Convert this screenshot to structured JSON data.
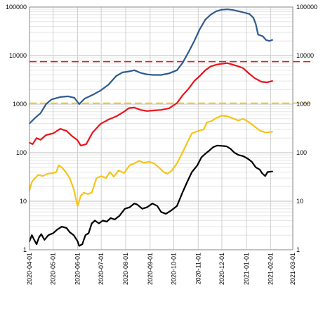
{
  "chart_data": {
    "type": "line",
    "yscale": "log",
    "ylim": [
      1,
      100000
    ],
    "xlim": [
      "2020-04-01",
      "2021-03-01"
    ],
    "grid": true,
    "legend": "none",
    "y_ticks": [
      {
        "value": 1,
        "label": "1"
      },
      {
        "value": 10,
        "label": "10"
      },
      {
        "value": 100,
        "label": "100"
      },
      {
        "value": 1000,
        "label": "1000"
      },
      {
        "value": 10000,
        "label": "10000"
      },
      {
        "value": 100000,
        "label": "100000"
      }
    ],
    "x_ticks": [
      "2020-04-01",
      "2020-05-01",
      "2020-06-01",
      "2020-07-01",
      "2020-08-01",
      "2020-09-01",
      "2020-10-01",
      "2020-11-01",
      "2020-12-01",
      "2021-01-01",
      "2021-02-01",
      "2021-03-01"
    ],
    "reference_lines": [
      {
        "value": 7500,
        "color": "#e8141b",
        "style": "dashed"
      },
      {
        "value": 1050,
        "color": "#f5c518",
        "style": "dashed"
      }
    ],
    "series": [
      {
        "color": "#2e5b8f",
        "points": [
          [
            "2020-04-01",
            400
          ],
          [
            "2020-04-08",
            520
          ],
          [
            "2020-04-15",
            650
          ],
          [
            "2020-04-22",
            1000
          ],
          [
            "2020-04-29",
            1250
          ],
          [
            "2020-05-10",
            1400
          ],
          [
            "2020-05-20",
            1450
          ],
          [
            "2020-05-28",
            1350
          ],
          [
            "2020-06-03",
            1000
          ],
          [
            "2020-06-10",
            1300
          ],
          [
            "2020-06-20",
            1550
          ],
          [
            "2020-06-30",
            1900
          ],
          [
            "2020-07-10",
            2500
          ],
          [
            "2020-07-20",
            3800
          ],
          [
            "2020-07-28",
            4500
          ],
          [
            "2020-08-05",
            4700
          ],
          [
            "2020-08-12",
            5000
          ],
          [
            "2020-08-20",
            4400
          ],
          [
            "2020-08-28",
            4100
          ],
          [
            "2020-09-05",
            4000
          ],
          [
            "2020-09-15",
            4000
          ],
          [
            "2020-09-25",
            4300
          ],
          [
            "2020-10-05",
            5000
          ],
          [
            "2020-10-12",
            7000
          ],
          [
            "2020-10-20",
            12000
          ],
          [
            "2020-10-27",
            20000
          ],
          [
            "2020-11-03",
            35000
          ],
          [
            "2020-11-10",
            55000
          ],
          [
            "2020-11-17",
            70000
          ],
          [
            "2020-11-24",
            82000
          ],
          [
            "2020-12-01",
            88000
          ],
          [
            "2020-12-08",
            90000
          ],
          [
            "2020-12-15",
            87000
          ],
          [
            "2020-12-25",
            80000
          ],
          [
            "2021-01-05",
            72000
          ],
          [
            "2021-01-10",
            60000
          ],
          [
            "2021-01-13",
            45000
          ],
          [
            "2021-01-16",
            27000
          ],
          [
            "2021-01-22",
            25000
          ],
          [
            "2021-01-26",
            21000
          ],
          [
            "2021-01-30",
            20000
          ],
          [
            "2021-02-03",
            21000
          ]
        ]
      },
      {
        "color": "#e8141b",
        "points": [
          [
            "2020-04-01",
            160
          ],
          [
            "2020-04-05",
            150
          ],
          [
            "2020-04-10",
            200
          ],
          [
            "2020-04-15",
            185
          ],
          [
            "2020-04-22",
            230
          ],
          [
            "2020-05-01",
            250
          ],
          [
            "2020-05-10",
            310
          ],
          [
            "2020-05-18",
            280
          ],
          [
            "2020-05-25",
            220
          ],
          [
            "2020-06-01",
            180
          ],
          [
            "2020-06-05",
            140
          ],
          [
            "2020-06-12",
            150
          ],
          [
            "2020-06-20",
            260
          ],
          [
            "2020-06-30",
            390
          ],
          [
            "2020-07-10",
            480
          ],
          [
            "2020-07-20",
            560
          ],
          [
            "2020-07-30",
            700
          ],
          [
            "2020-08-05",
            830
          ],
          [
            "2020-08-12",
            850
          ],
          [
            "2020-08-20",
            760
          ],
          [
            "2020-08-28",
            720
          ],
          [
            "2020-09-05",
            740
          ],
          [
            "2020-09-15",
            760
          ],
          [
            "2020-09-25",
            820
          ],
          [
            "2020-10-05",
            1050
          ],
          [
            "2020-10-12",
            1500
          ],
          [
            "2020-10-20",
            2100
          ],
          [
            "2020-10-27",
            3000
          ],
          [
            "2020-11-03",
            3800
          ],
          [
            "2020-11-10",
            5000
          ],
          [
            "2020-11-17",
            6000
          ],
          [
            "2020-11-24",
            6500
          ],
          [
            "2020-12-01",
            6800
          ],
          [
            "2020-12-08",
            7000
          ],
          [
            "2020-12-15",
            6500
          ],
          [
            "2020-12-22",
            6000
          ],
          [
            "2020-12-28",
            5500
          ],
          [
            "2021-01-05",
            4200
          ],
          [
            "2021-01-12",
            3400
          ],
          [
            "2021-01-20",
            2900
          ],
          [
            "2021-01-27",
            2800
          ],
          [
            "2021-02-03",
            3000
          ]
        ]
      },
      {
        "color": "#f5c518",
        "points": [
          [
            "2020-04-01",
            17
          ],
          [
            "2020-04-04",
            25
          ],
          [
            "2020-04-08",
            30
          ],
          [
            "2020-04-12",
            35
          ],
          [
            "2020-04-18",
            33
          ],
          [
            "2020-04-24",
            37
          ],
          [
            "2020-05-01",
            38
          ],
          [
            "2020-05-05",
            40
          ],
          [
            "2020-05-08",
            55
          ],
          [
            "2020-05-12",
            50
          ],
          [
            "2020-05-17",
            40
          ],
          [
            "2020-05-22",
            30
          ],
          [
            "2020-05-27",
            18
          ],
          [
            "2020-06-01",
            8
          ],
          [
            "2020-06-05",
            13
          ],
          [
            "2020-06-09",
            15
          ],
          [
            "2020-06-14",
            14
          ],
          [
            "2020-06-19",
            15
          ],
          [
            "2020-06-25",
            30
          ],
          [
            "2020-07-01",
            33
          ],
          [
            "2020-07-07",
            30
          ],
          [
            "2020-07-12",
            40
          ],
          [
            "2020-07-17",
            32
          ],
          [
            "2020-07-23",
            43
          ],
          [
            "2020-07-30",
            38
          ],
          [
            "2020-08-06",
            55
          ],
          [
            "2020-08-12",
            60
          ],
          [
            "2020-08-18",
            68
          ],
          [
            "2020-08-24",
            62
          ],
          [
            "2020-08-31",
            65
          ],
          [
            "2020-09-06",
            60
          ],
          [
            "2020-09-12",
            50
          ],
          [
            "2020-09-18",
            40
          ],
          [
            "2020-09-23",
            37
          ],
          [
            "2020-09-28",
            42
          ],
          [
            "2020-10-05",
            60
          ],
          [
            "2020-10-12",
            100
          ],
          [
            "2020-10-18",
            160
          ],
          [
            "2020-10-24",
            250
          ],
          [
            "2020-11-01",
            280
          ],
          [
            "2020-11-08",
            300
          ],
          [
            "2020-11-12",
            420
          ],
          [
            "2020-11-18",
            450
          ],
          [
            "2020-11-24",
            520
          ],
          [
            "2020-12-01",
            580
          ],
          [
            "2020-12-08",
            560
          ],
          [
            "2020-12-15",
            510
          ],
          [
            "2020-12-22",
            460
          ],
          [
            "2020-12-28",
            500
          ],
          [
            "2021-01-05",
            420
          ],
          [
            "2021-01-12",
            340
          ],
          [
            "2021-01-19",
            280
          ],
          [
            "2021-01-26",
            260
          ],
          [
            "2021-02-03",
            270
          ]
        ]
      },
      {
        "color": "#000000",
        "points": [
          [
            "2020-04-01",
            1.5
          ],
          [
            "2020-04-04",
            2.0
          ],
          [
            "2020-04-07",
            1.6
          ],
          [
            "2020-04-10",
            1.3
          ],
          [
            "2020-04-13",
            1.8
          ],
          [
            "2020-04-16",
            2.1
          ],
          [
            "2020-04-20",
            1.6
          ],
          [
            "2020-04-25",
            2.0
          ],
          [
            "2020-05-01",
            2.2
          ],
          [
            "2020-05-06",
            2.6
          ],
          [
            "2020-05-12",
            3.0
          ],
          [
            "2020-05-18",
            2.8
          ],
          [
            "2020-05-22",
            2.3
          ],
          [
            "2020-05-27",
            2.0
          ],
          [
            "2020-06-01",
            1.5
          ],
          [
            "2020-06-03",
            1.2
          ],
          [
            "2020-06-07",
            1.3
          ],
          [
            "2020-06-11",
            2.0
          ],
          [
            "2020-06-15",
            2.2
          ],
          [
            "2020-06-19",
            3.5
          ],
          [
            "2020-06-23",
            4.0
          ],
          [
            "2020-06-28",
            3.5
          ],
          [
            "2020-07-03",
            4.0
          ],
          [
            "2020-07-08",
            3.8
          ],
          [
            "2020-07-13",
            4.5
          ],
          [
            "2020-07-18",
            4.2
          ],
          [
            "2020-07-24",
            5.0
          ],
          [
            "2020-07-31",
            7.0
          ],
          [
            "2020-08-06",
            7.5
          ],
          [
            "2020-08-12",
            9.0
          ],
          [
            "2020-08-16",
            8.5
          ],
          [
            "2020-08-22",
            7.0
          ],
          [
            "2020-08-28",
            7.5
          ],
          [
            "2020-09-04",
            9.0
          ],
          [
            "2020-09-10",
            8.0
          ],
          [
            "2020-09-15",
            6.0
          ],
          [
            "2020-09-21",
            5.5
          ],
          [
            "2020-09-28",
            6.5
          ],
          [
            "2020-10-05",
            8.0
          ],
          [
            "2020-10-12",
            15
          ],
          [
            "2020-10-18",
            25
          ],
          [
            "2020-10-24",
            40
          ],
          [
            "2020-10-31",
            55
          ],
          [
            "2020-11-05",
            80
          ],
          [
            "2020-11-10",
            95
          ],
          [
            "2020-11-15",
            110
          ],
          [
            "2020-11-20",
            130
          ],
          [
            "2020-11-25",
            140
          ],
          [
            "2020-12-01",
            138
          ],
          [
            "2020-12-07",
            135
          ],
          [
            "2020-12-12",
            120
          ],
          [
            "2020-12-17",
            100
          ],
          [
            "2020-12-22",
            90
          ],
          [
            "2020-12-28",
            85
          ],
          [
            "2021-01-03",
            75
          ],
          [
            "2021-01-08",
            65
          ],
          [
            "2021-01-13",
            50
          ],
          [
            "2021-01-18",
            45
          ],
          [
            "2021-01-21",
            38
          ],
          [
            "2021-01-25",
            33
          ],
          [
            "2021-01-28",
            40
          ],
          [
            "2021-02-03",
            41
          ]
        ]
      }
    ]
  }
}
